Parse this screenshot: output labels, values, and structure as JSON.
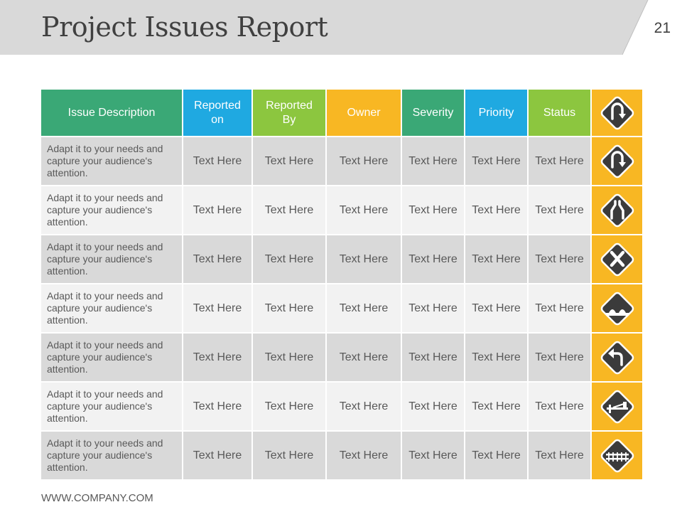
{
  "slide": {
    "title": "Project Issues Report",
    "page_number": "21",
    "footer": "WWW.COMPANY.COM"
  },
  "colors": {
    "green": "#3aa876",
    "blue": "#1fa9e1",
    "lime": "#8cc63f",
    "amber": "#f8b723",
    "header_gray": "#d9d9d9"
  },
  "table": {
    "headers": [
      {
        "label": "Issue Description",
        "color": "#3aa876"
      },
      {
        "label": "Reported on",
        "color": "#1fa9e1"
      },
      {
        "label": "Reported By",
        "color": "#8cc63f"
      },
      {
        "label": "Owner",
        "color": "#f8b723"
      },
      {
        "label": "Severity",
        "color": "#3aa876"
      },
      {
        "label": "Priority",
        "color": "#1fa9e1"
      },
      {
        "label": "Status",
        "color": "#8cc63f"
      }
    ],
    "header_icon": "u-turn-sign-icon",
    "rows": [
      {
        "description": "Adapt it to your needs and capture your audience's attention.",
        "cells": [
          "Text Here",
          "Text Here",
          "Text Here",
          "Text Here",
          "Text Here",
          "Text Here"
        ],
        "icon": "u-turn-sign-icon"
      },
      {
        "description": "Adapt it to your needs and capture your audience's attention.",
        "cells": [
          "Text Here",
          "Text Here",
          "Text Here",
          "Text Here",
          "Text Here",
          "Text Here"
        ],
        "icon": "road-narrows-sign-icon"
      },
      {
        "description": "Adapt it to your needs and capture your audience's attention.",
        "cells": [
          "Text Here",
          "Text Here",
          "Text Here",
          "Text Here",
          "Text Here",
          "Text Here"
        ],
        "icon": "cross-sign-icon"
      },
      {
        "description": "Adapt it to your needs and capture your audience's attention.",
        "cells": [
          "Text Here",
          "Text Here",
          "Text Here",
          "Text Here",
          "Text Here",
          "Text Here"
        ],
        "icon": "bumpy-road-sign-icon"
      },
      {
        "description": "Adapt it to your needs and capture your audience's attention.",
        "cells": [
          "Text Here",
          "Text Here",
          "Text Here",
          "Text Here",
          "Text Here",
          "Text Here"
        ],
        "icon": "left-turn-sign-icon"
      },
      {
        "description": "Adapt it to your needs and capture your audience's attention.",
        "cells": [
          "Text Here",
          "Text Here",
          "Text Here",
          "Text Here",
          "Text Here",
          "Text Here"
        ],
        "icon": "railroad-gate-sign-icon"
      },
      {
        "description": "Adapt it to your needs and capture your audience's attention.",
        "cells": [
          "Text Here",
          "Text Here",
          "Text Here",
          "Text Here",
          "Text Here",
          "Text Here"
        ],
        "icon": "railroad-crossing-sign-icon"
      }
    ]
  }
}
